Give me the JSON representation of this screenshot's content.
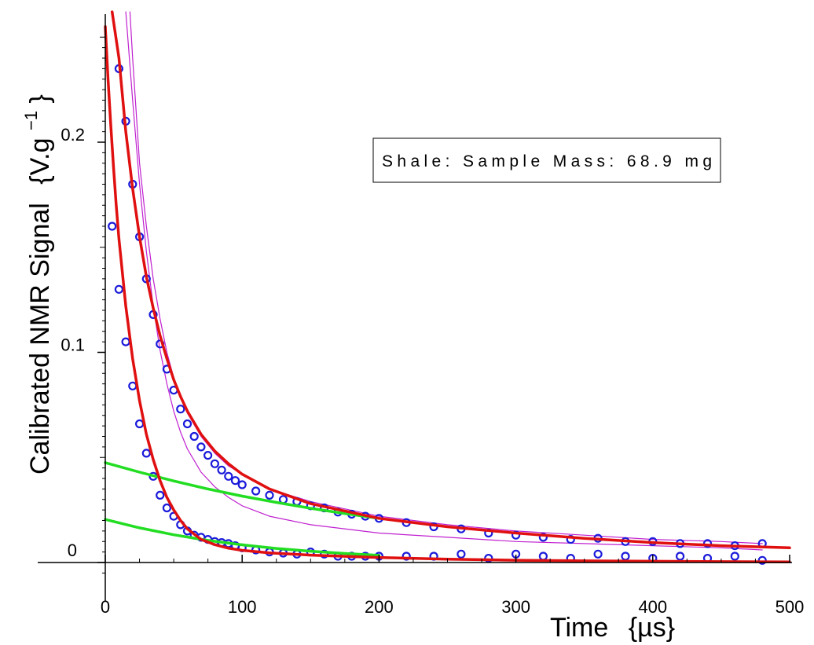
{
  "chart_data": {
    "type": "scatter",
    "title": "",
    "xlabel": "Time",
    "xlabel_unit": "{µs}",
    "ylabel": "Calibrated NMR Signal",
    "ylabel_unit_base": "{V.g",
    "ylabel_unit_exp": "−1",
    "ylabel_unit_close": "}",
    "xlim": [
      0,
      500
    ],
    "ylim": [
      -0.01,
      0.26
    ],
    "x_ticks": [
      0,
      100,
      200,
      300,
      400,
      500
    ],
    "x_tick_labels": [
      "0",
      "100",
      "200",
      "300",
      "400",
      "500"
    ],
    "y_ticks": [
      0,
      0.1,
      0.2
    ],
    "y_tick_labels": [
      "0",
      "0.1",
      "0.2"
    ],
    "grid": false,
    "annotation": "Shale: Sample Mass: 68.9 mg",
    "colors": {
      "data_points": "#1a1adb",
      "fit": "#e01010",
      "slow_component": "#22dd22",
      "thin_curve": "#c020d0"
    },
    "series": [
      {
        "kind": "points",
        "x": [
          5,
          10,
          15,
          20,
          25,
          30,
          35,
          40,
          45,
          50,
          55,
          60,
          65,
          70,
          75,
          80,
          85,
          90,
          95,
          100,
          110,
          120,
          130,
          140,
          150,
          160,
          170,
          180,
          190,
          200,
          220,
          240,
          260,
          280,
          300,
          320,
          340,
          360,
          380,
          400,
          420,
          440,
          460,
          480
        ],
        "y": [
          0.16,
          0.13,
          0.105,
          0.084,
          0.066,
          0.052,
          0.041,
          0.032,
          0.026,
          0.022,
          0.018,
          0.015,
          0.013,
          0.012,
          0.011,
          0.01,
          0.0095,
          0.009,
          0.008,
          0.007,
          0.006,
          0.005,
          0.0045,
          0.004,
          0.005,
          0.004,
          0.003,
          0.003,
          0.003,
          0.003,
          0.003,
          0.003,
          0.004,
          0.002,
          0.004,
          0.003,
          0.002,
          0.004,
          0.003,
          0.002,
          0.003,
          0.002,
          0.003,
          0.001
        ]
      },
      {
        "kind": "points",
        "x": [
          10,
          15,
          20,
          25,
          30,
          35,
          40,
          45,
          50,
          55,
          60,
          65,
          70,
          75,
          80,
          85,
          90,
          95,
          100,
          110,
          120,
          130,
          140,
          150,
          160,
          170,
          180,
          190,
          200,
          220,
          240,
          260,
          280,
          300,
          320,
          340,
          360,
          380,
          400,
          420,
          440,
          460,
          480
        ],
        "y": [
          0.235,
          0.21,
          0.18,
          0.155,
          0.135,
          0.118,
          0.104,
          0.092,
          0.082,
          0.073,
          0.066,
          0.06,
          0.055,
          0.051,
          0.047,
          0.044,
          0.041,
          0.039,
          0.037,
          0.034,
          0.032,
          0.03,
          0.029,
          0.027,
          0.026,
          0.024,
          0.023,
          0.022,
          0.021,
          0.019,
          0.017,
          0.016,
          0.014,
          0.013,
          0.012,
          0.011,
          0.0115,
          0.01,
          0.01,
          0.009,
          0.009,
          0.008,
          0.009
        ]
      },
      {
        "kind": "fit",
        "x": [
          0,
          2,
          4,
          6,
          8,
          10,
          15,
          20,
          25,
          30,
          35,
          40,
          45,
          50,
          55,
          60,
          70,
          80,
          90,
          100,
          120,
          150,
          200,
          250,
          300,
          350,
          400,
          450,
          500
        ],
        "y": [
          0.255,
          0.23,
          0.208,
          0.188,
          0.17,
          0.154,
          0.122,
          0.097,
          0.077,
          0.061,
          0.049,
          0.039,
          0.031,
          0.025,
          0.02,
          0.016,
          0.011,
          0.0085,
          0.0068,
          0.0058,
          0.0046,
          0.0035,
          0.0024,
          0.0016,
          0.0011,
          0.0008,
          0.0006,
          0.0004,
          0.0003
        ]
      },
      {
        "kind": "fit",
        "x": [
          5,
          10,
          15,
          20,
          25,
          30,
          35,
          40,
          45,
          50,
          55,
          60,
          70,
          80,
          90,
          100,
          120,
          150,
          200,
          250,
          300,
          350,
          400,
          450,
          500
        ],
        "y": [
          0.262,
          0.24,
          0.205,
          0.178,
          0.155,
          0.136,
          0.121,
          0.108,
          0.097,
          0.087,
          0.079,
          0.072,
          0.061,
          0.053,
          0.047,
          0.042,
          0.035,
          0.028,
          0.021,
          0.017,
          0.014,
          0.0115,
          0.0095,
          0.008,
          0.007
        ]
      },
      {
        "kind": "slow",
        "x": [
          0,
          25,
          50,
          75,
          100,
          125,
          150,
          175,
          200
        ],
        "y": [
          0.0205,
          0.0165,
          0.0132,
          0.0105,
          0.0084,
          0.0067,
          0.0054,
          0.0043,
          0.0034
        ]
      },
      {
        "kind": "slow",
        "x": [
          0,
          25,
          50,
          75,
          100,
          125,
          150,
          175,
          200
        ],
        "y": [
          0.0475,
          0.043,
          0.0388,
          0.035,
          0.0316,
          0.0286,
          0.0258,
          0.0233,
          0.021
        ]
      },
      {
        "kind": "thin",
        "x": [
          15,
          20,
          25,
          30,
          35,
          40,
          45,
          50,
          55,
          60,
          70,
          80,
          90,
          100,
          120,
          150,
          200,
          250,
          300,
          350,
          400,
          450,
          480
        ],
        "y": [
          0.262,
          0.22,
          0.18,
          0.148,
          0.122,
          0.101,
          0.085,
          0.072,
          0.062,
          0.054,
          0.043,
          0.036,
          0.031,
          0.027,
          0.022,
          0.018,
          0.014,
          0.012,
          0.01,
          0.009,
          0.008,
          0.007,
          0.006
        ]
      },
      {
        "kind": "thin",
        "x": [
          18,
          20,
          25,
          30,
          35,
          40,
          45,
          50,
          55,
          60,
          70,
          80,
          90,
          100,
          120,
          150,
          200,
          250,
          300,
          350,
          400,
          450,
          480
        ],
        "y": [
          0.262,
          0.24,
          0.19,
          0.16,
          0.135,
          0.116,
          0.1,
          0.088,
          0.079,
          0.071,
          0.06,
          0.052,
          0.046,
          0.042,
          0.035,
          0.029,
          0.022,
          0.018,
          0.015,
          0.013,
          0.011,
          0.01,
          0.009
        ]
      }
    ]
  }
}
